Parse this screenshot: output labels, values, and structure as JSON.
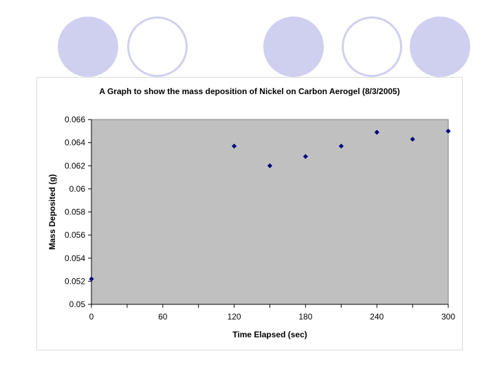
{
  "slide": {
    "decor_color": "#cfcfef",
    "decor": [
      {
        "style": "filled"
      },
      {
        "style": "ring"
      },
      {
        "style": "filled"
      },
      {
        "style": "ring"
      },
      {
        "style": "filled"
      }
    ]
  },
  "chart_data": {
    "type": "scatter",
    "title": "A Graph to show the mass deposition of Nickel on Carbon Aerogel (8/3/2005)",
    "xlabel": "Time Elapsed (sec)",
    "ylabel": "Mass Deposited (g)",
    "xlim": [
      0,
      300
    ],
    "ylim": [
      0.05,
      0.066
    ],
    "x_ticks": [
      0,
      60,
      120,
      180,
      240,
      300
    ],
    "x_tick_labels": [
      "0",
      "60",
      "120",
      "180",
      "240",
      "300"
    ],
    "y_ticks": [
      0.05,
      0.052,
      0.054,
      0.056,
      0.058,
      0.06,
      0.062,
      0.064,
      0.066
    ],
    "y_tick_labels": [
      "0.05",
      "0.052",
      "0.054",
      "0.056",
      "0.058",
      "0.06",
      "0.062",
      "0.064",
      "0.066"
    ],
    "grid": false,
    "legend": "none",
    "plot_background": "#c0c0c0",
    "marker_color": "#000080",
    "marker": "diamond",
    "series": [
      {
        "x": [
          0,
          120,
          150,
          180,
          210,
          240,
          270,
          300
        ],
        "y": [
          0.0522,
          0.0637,
          0.062,
          0.0628,
          0.0637,
          0.0649,
          0.0643,
          0.065
        ]
      }
    ]
  }
}
